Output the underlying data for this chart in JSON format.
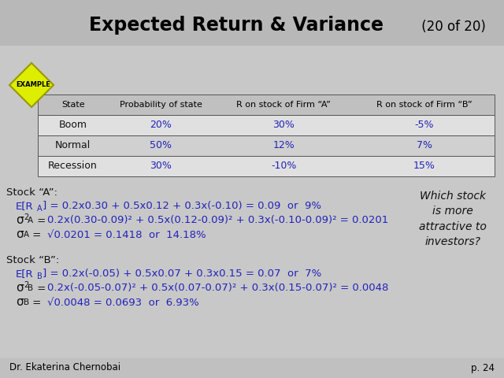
{
  "title_bold": "Expected Return & Variance",
  "title_normal": " (20 of 20)",
  "bg_color": "#c8c8c8",
  "title_bar_color": "#b8b8b8",
  "footer_bar_color": "#c0c0c0",
  "table_header_row": [
    "State",
    "Probability of state",
    "R on stock of Firm “A”",
    "R on stock of Firm “B”"
  ],
  "table_rows": [
    [
      "Boom",
      "20%",
      "30%",
      "-5%"
    ],
    [
      "Normal",
      "50%",
      "12%",
      "7%"
    ],
    [
      "Recession",
      "30%",
      "-10%",
      "15%"
    ]
  ],
  "row_bg_0": "#e0e0e0",
  "row_bg_1": "#d0d0d0",
  "row_bg_2": "#e0e0e0",
  "header_row_bg": "#c0c0c0",
  "blue_color": "#2222bb",
  "black_color": "#111111",
  "footer_text_left": "Dr. Ekaterina Chernobai",
  "footer_text_right": "p. 24",
  "example_bg": "#ddee00",
  "example_border": "#999900",
  "stock_a_label": "Stock “A”:",
  "stock_b_label": "Stock “B”:",
  "which_stock": "Which stock\nis more\nattractive to\ninvestors?"
}
